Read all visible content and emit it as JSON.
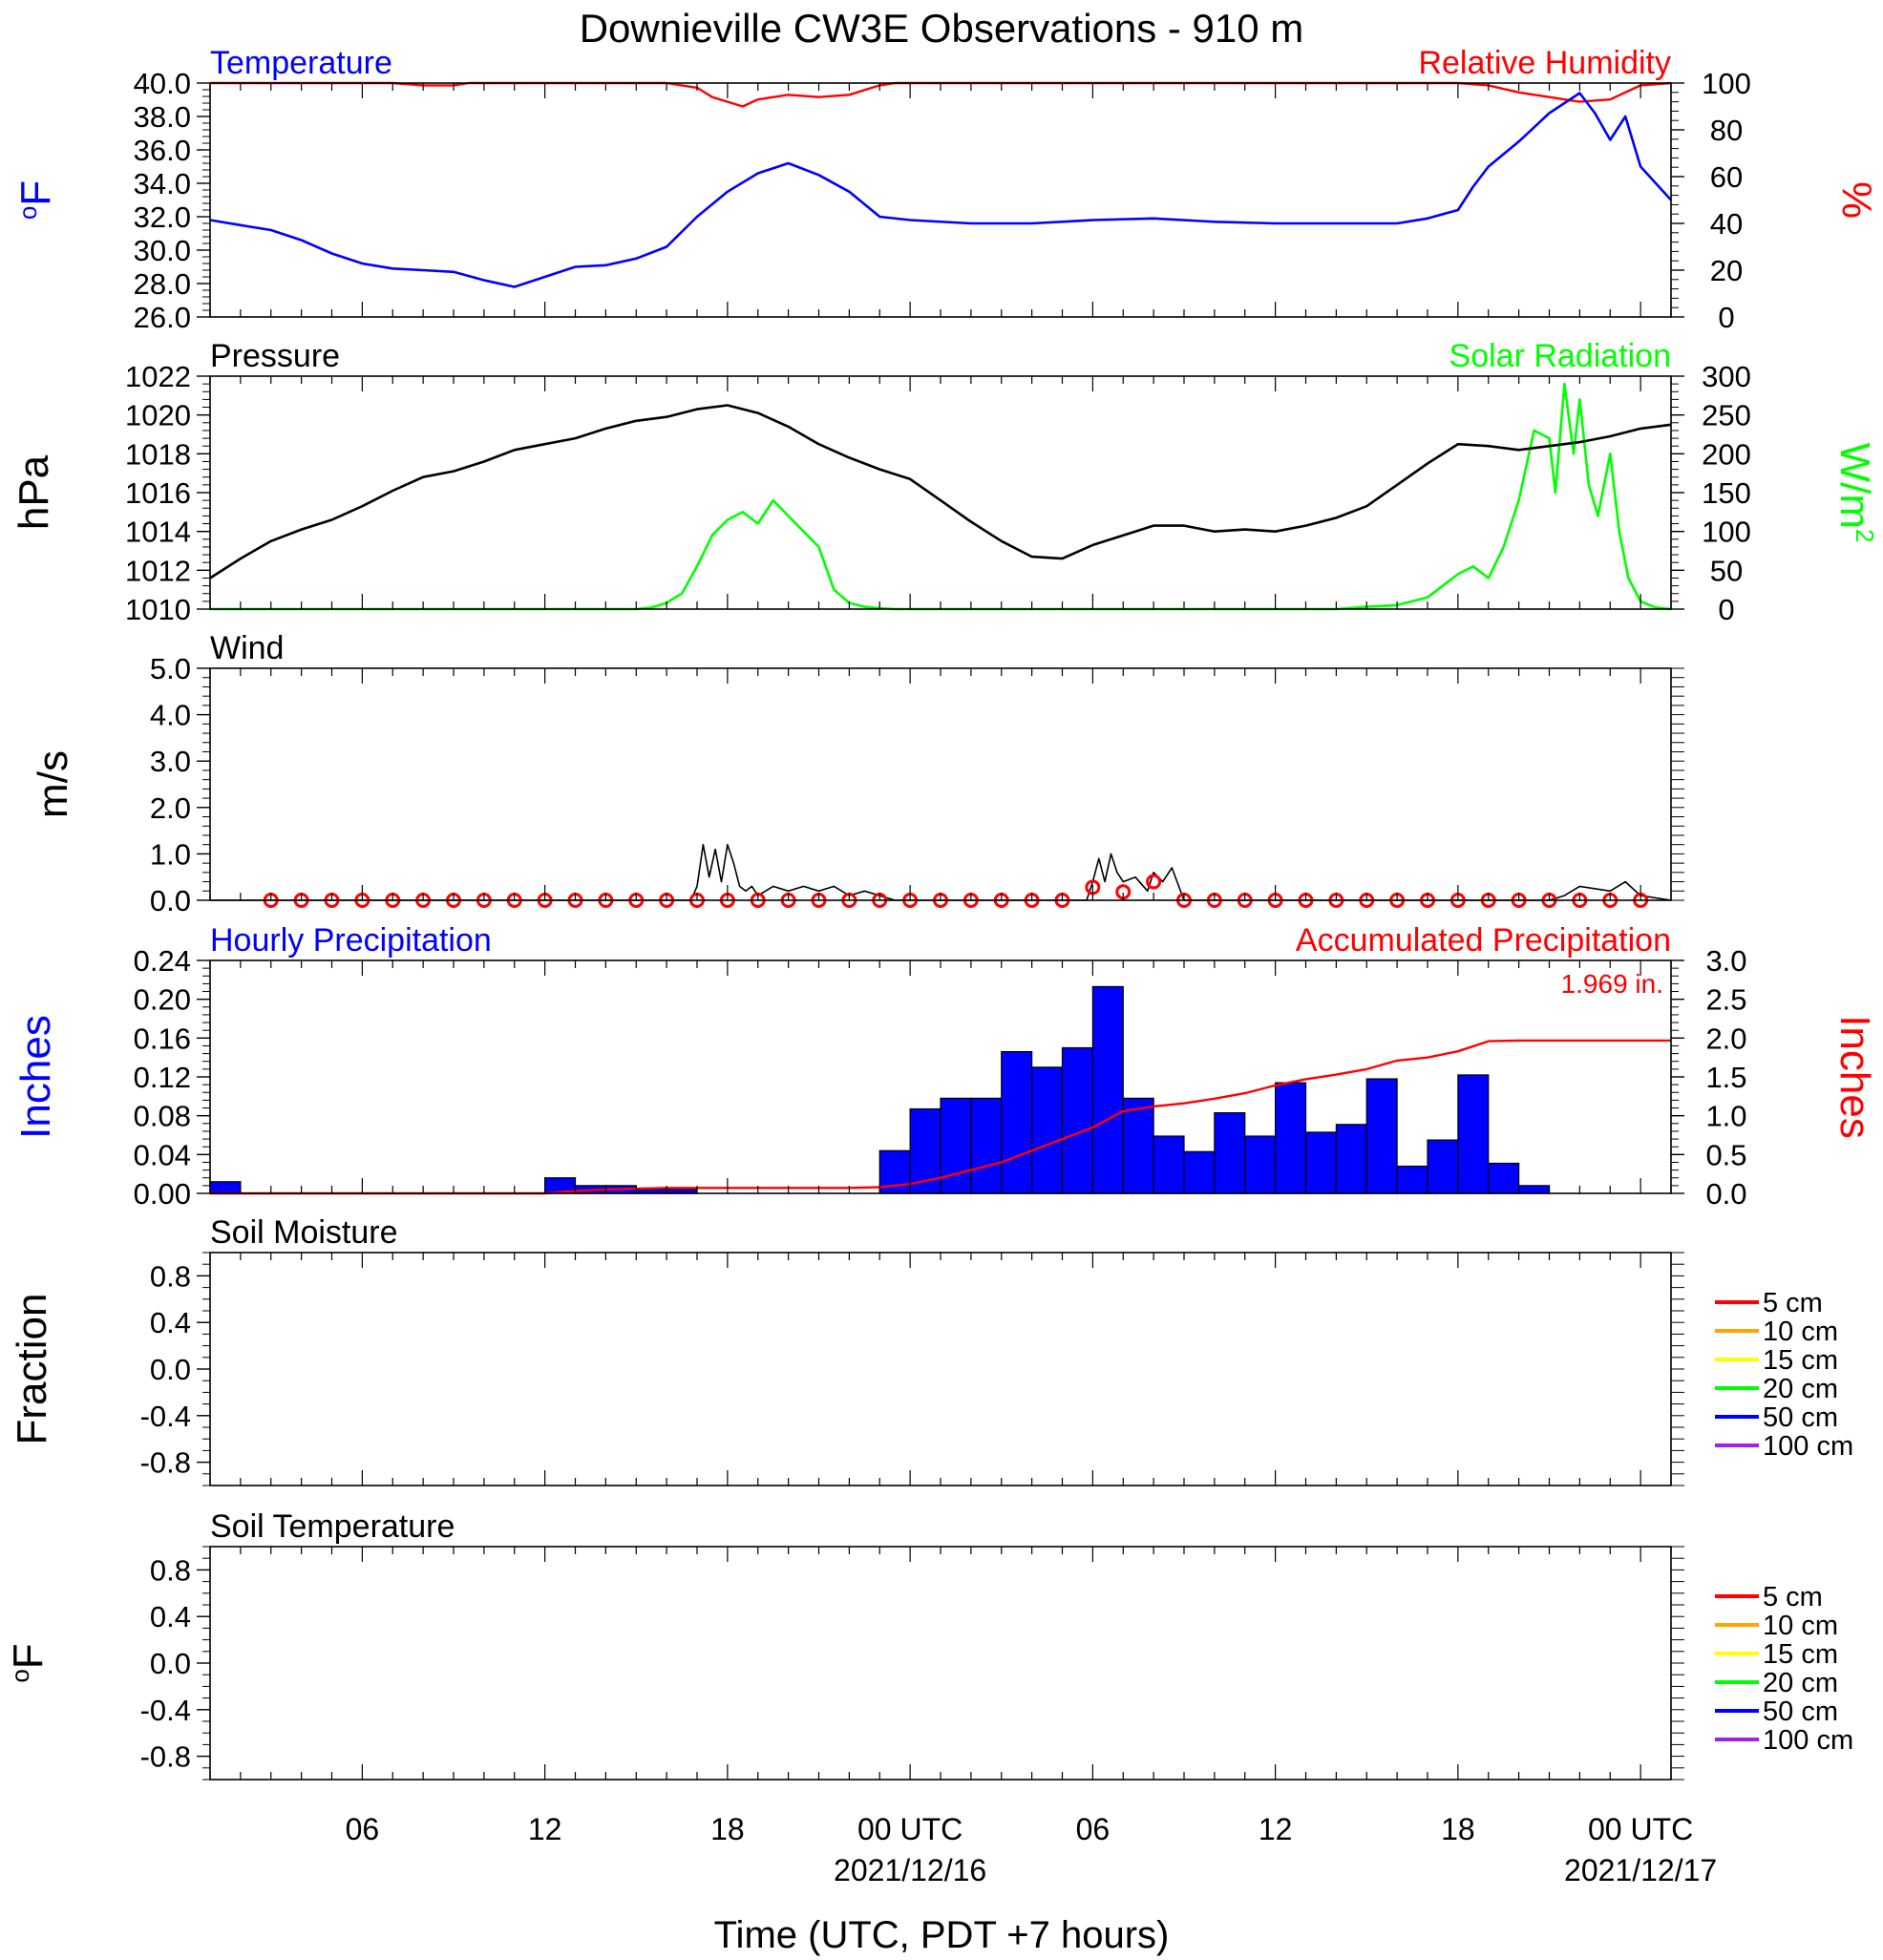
{
  "title": "Downieville CW3E Observations - 910 m",
  "xaxis": {
    "label": "Time (UTC, PDT +7 hours)",
    "ticks": [
      {
        "hour": 6,
        "label": "06"
      },
      {
        "hour": 12,
        "label": "12"
      },
      {
        "hour": 18,
        "label": "18"
      },
      {
        "hour": 24,
        "label": "00 UTC",
        "date": "2021/12/16"
      },
      {
        "hour": 30,
        "label": "06"
      },
      {
        "hour": 36,
        "label": "12"
      },
      {
        "hour": 42,
        "label": "18"
      },
      {
        "hour": 48,
        "label": "00 UTC",
        "date": "2021/12/17"
      }
    ],
    "range_hours": [
      1,
      49
    ]
  },
  "colors": {
    "temperature": "#0000ff",
    "humidity": "#ff0000",
    "pressure": "#000000",
    "solar": "#00ff00",
    "wind": "#000000",
    "wind_hourly_marker": "#ff0000",
    "hourly_precip": "#0000ff",
    "accum_precip": "#ff0000",
    "soil_5cm": "#ff0000",
    "soil_10cm": "#ffa500",
    "soil_15cm": "#ffff00",
    "soil_20cm": "#00ff00",
    "soil_50cm": "#0000ff",
    "soil_100cm": "#a020f0"
  },
  "panels": {
    "temp_rh": {
      "left_title": "Temperature",
      "right_title": "Relative Humidity",
      "left_unit": "oF",
      "right_unit": "%",
      "left_ticks": [
        "26.0",
        "28.0",
        "30.0",
        "32.0",
        "34.0",
        "36.0",
        "38.0",
        "40.0"
      ],
      "right_ticks": [
        "0",
        "20",
        "40",
        "60",
        "80",
        "100"
      ]
    },
    "pressure_solar": {
      "left_title": "Pressure",
      "right_title": "Solar Radiation",
      "left_unit": "hPa",
      "right_unit": "W/m2",
      "left_ticks": [
        "1010",
        "1012",
        "1014",
        "1016",
        "1018",
        "1020",
        "1022"
      ],
      "right_ticks": [
        "0",
        "50",
        "100",
        "150",
        "200",
        "250",
        "300"
      ]
    },
    "wind": {
      "left_title": "Wind",
      "left_unit": "m/s",
      "left_ticks": [
        "0.0",
        "1.0",
        "2.0",
        "3.0",
        "4.0",
        "5.0"
      ]
    },
    "precip": {
      "left_title": "Hourly Precipitation",
      "right_title": "Accumulated Precipitation",
      "left_unit": "Inches",
      "right_unit": "Inches",
      "total_label": "1.969 in.",
      "left_ticks": [
        "0.00",
        "0.04",
        "0.08",
        "0.12",
        "0.16",
        "0.20",
        "0.24"
      ],
      "right_ticks": [
        "0.0",
        "0.5",
        "1.0",
        "1.5",
        "2.0",
        "2.5",
        "3.0"
      ]
    },
    "soil_moisture": {
      "left_title": "Soil Moisture",
      "left_unit": "Fraction",
      "left_ticks": [
        "-0.8",
        "-0.4",
        "0.0",
        "0.4",
        "0.8"
      ],
      "legend": [
        "5 cm",
        "10 cm",
        "15 cm",
        "20 cm",
        "50 cm",
        "100 cm"
      ]
    },
    "soil_temperature": {
      "left_title": "Soil Temperature",
      "left_unit": "oF",
      "left_ticks": [
        "-0.8",
        "-0.4",
        "0.0",
        "0.4",
        "0.8"
      ],
      "legend": [
        "5 cm",
        "10 cm",
        "15 cm",
        "20 cm",
        "50 cm",
        "100 cm"
      ]
    }
  },
  "chart_data": [
    {
      "type": "line",
      "title": "Temperature",
      "ylabel": "oF",
      "ylim": [
        26,
        40
      ],
      "x_unit": "hours since 2021-12-15 00 UTC",
      "series": [
        {
          "name": "Temperature",
          "x": [
            1,
            2,
            3,
            4,
            5,
            6,
            7,
            8,
            9,
            10,
            11,
            12,
            13,
            14,
            15,
            16,
            17,
            18,
            19,
            20,
            21,
            22,
            23,
            24,
            26,
            28,
            30,
            32,
            34,
            36,
            38,
            40,
            41,
            42,
            42.5,
            43,
            44,
            45,
            46,
            46.5,
            47,
            47.5,
            48,
            49
          ],
          "y": [
            31.8,
            31.5,
            31.2,
            30.6,
            29.8,
            29.2,
            28.9,
            28.8,
            28.7,
            28.2,
            27.8,
            28.4,
            29.0,
            29.1,
            29.5,
            30.2,
            32.0,
            33.5,
            34.6,
            35.2,
            34.5,
            33.5,
            32.0,
            31.8,
            31.6,
            31.6,
            31.8,
            31.9,
            31.7,
            31.6,
            31.6,
            31.6,
            31.9,
            32.4,
            33.8,
            35.0,
            36.5,
            38.2,
            39.4,
            38.2,
            36.6,
            38.0,
            35.0,
            33.0
          ]
        }
      ]
    },
    {
      "type": "line",
      "title": "Relative Humidity",
      "ylabel": "%",
      "ylim": [
        0,
        100
      ],
      "series": [
        {
          "name": "Relative Humidity",
          "x": [
            1,
            7,
            8,
            9,
            9.5,
            16,
            17,
            17.5,
            18,
            18.5,
            19,
            20,
            21,
            22,
            23,
            23.5,
            42,
            43,
            44,
            45,
            46,
            47,
            48,
            49
          ],
          "y": [
            100,
            100,
            99,
            99,
            100,
            100,
            98,
            94,
            92,
            90,
            93,
            95,
            94,
            95,
            99,
            100,
            100,
            99,
            96,
            94,
            92,
            93,
            99,
            100
          ]
        }
      ]
    },
    {
      "type": "line",
      "title": "Pressure",
      "ylabel": "hPa",
      "ylim": [
        1010,
        1022
      ],
      "series": [
        {
          "name": "Pressure",
          "x": [
            1,
            2,
            3,
            4,
            5,
            6,
            7,
            8,
            9,
            10,
            11,
            12,
            13,
            14,
            15,
            16,
            17,
            18,
            19,
            20,
            21,
            22,
            23,
            24,
            25,
            26,
            27,
            28,
            29,
            30,
            31,
            32,
            33,
            34,
            35,
            36,
            37,
            38,
            39,
            40,
            41,
            42,
            43,
            44,
            45,
            46,
            47,
            48,
            49
          ],
          "y": [
            1011.6,
            1012.6,
            1013.5,
            1014.1,
            1014.6,
            1015.3,
            1016.1,
            1016.8,
            1017.1,
            1017.6,
            1018.2,
            1018.5,
            1018.8,
            1019.3,
            1019.7,
            1019.9,
            1020.3,
            1020.5,
            1020.1,
            1019.4,
            1018.5,
            1017.8,
            1017.2,
            1016.7,
            1015.6,
            1014.5,
            1013.5,
            1012.7,
            1012.6,
            1013.3,
            1013.8,
            1014.3,
            1014.3,
            1014.0,
            1014.1,
            1014.0,
            1014.3,
            1014.7,
            1015.3,
            1016.4,
            1017.5,
            1018.5,
            1018.4,
            1018.2,
            1018.4,
            1018.6,
            1018.9,
            1019.3,
            1019.5
          ]
        }
      ]
    },
    {
      "type": "line",
      "title": "Solar Radiation",
      "ylabel": "W/m2",
      "ylim": [
        0,
        300
      ],
      "series": [
        {
          "name": "Solar Radiation",
          "x": [
            1,
            15,
            15.5,
            16,
            16.5,
            17,
            17.5,
            18,
            18.5,
            19,
            19.5,
            20,
            20.5,
            21,
            21.5,
            22,
            22.5,
            23,
            23.5,
            24,
            38,
            39,
            40,
            41,
            41.5,
            42,
            42.5,
            43,
            43.5,
            44,
            44.5,
            45,
            45.2,
            45.5,
            45.8,
            46,
            46.3,
            46.6,
            47,
            47.3,
            47.6,
            48,
            48.5,
            49
          ],
          "y": [
            0,
            0,
            2,
            8,
            20,
            55,
            95,
            115,
            125,
            110,
            140,
            120,
            100,
            80,
            25,
            8,
            3,
            1,
            0,
            0,
            0,
            3,
            5,
            15,
            30,
            45,
            55,
            40,
            80,
            140,
            230,
            220,
            150,
            290,
            200,
            270,
            160,
            120,
            200,
            100,
            40,
            10,
            2,
            0
          ]
        }
      ]
    },
    {
      "type": "line",
      "title": "Wind",
      "ylabel": "m/s",
      "ylim": [
        0,
        5
      ],
      "series": [
        {
          "name": "Wind",
          "x": [
            1,
            16.8,
            17.0,
            17.2,
            17.4,
            17.6,
            17.8,
            18.0,
            18.2,
            18.4,
            18.6,
            18.8,
            19.0,
            19.5,
            20.0,
            20.5,
            21.0,
            21.5,
            22.0,
            22.5,
            23.0,
            23.5,
            29.8,
            30.0,
            30.2,
            30.4,
            30.6,
            30.8,
            31.0,
            31.4,
            31.8,
            32.0,
            32.3,
            32.6,
            33.0,
            45.0,
            45.5,
            46.0,
            47.0,
            47.5,
            48.0,
            49
          ],
          "y": [
            0,
            0,
            0.3,
            1.2,
            0.5,
            1.1,
            0.4,
            1.2,
            0.8,
            0.3,
            0.2,
            0.3,
            0.1,
            0.3,
            0.2,
            0.3,
            0.2,
            0.3,
            0.1,
            0.2,
            0.1,
            0,
            0,
            0.4,
            0.9,
            0.4,
            1.0,
            0.6,
            0.4,
            0.5,
            0.2,
            0.6,
            0.4,
            0.7,
            0,
            0,
            0.1,
            0.3,
            0.2,
            0.4,
            0.1,
            0
          ]
        },
        {
          "name": "Hourly wind",
          "x": [
            3,
            4,
            5,
            6,
            7,
            8,
            9,
            10,
            11,
            12,
            13,
            14,
            15,
            16,
            17,
            18,
            19,
            20,
            21,
            22,
            23,
            24,
            25,
            26,
            27,
            28,
            29,
            30,
            31,
            32,
            33,
            34,
            35,
            36,
            37,
            38,
            39,
            40,
            41,
            42,
            43,
            44,
            45,
            46,
            47,
            48
          ],
          "y": [
            0,
            0,
            0,
            0,
            0,
            0,
            0,
            0,
            0,
            0,
            0,
            0,
            0,
            0,
            0,
            0,
            0,
            0,
            0,
            0,
            0,
            0,
            0,
            0,
            0,
            0,
            0,
            0.28,
            0.18,
            0.4,
            0,
            0,
            0,
            0,
            0,
            0,
            0,
            0,
            0,
            0,
            0,
            0,
            0,
            0,
            0,
            0
          ]
        }
      ]
    },
    {
      "type": "bar",
      "title": "Hourly Precipitation",
      "ylabel": "Inches",
      "ylim": [
        0,
        0.24
      ],
      "series": [
        {
          "name": "Hourly Precipitation",
          "x": [
            1,
            12,
            13,
            14,
            15,
            16,
            17,
            18,
            19,
            20,
            21,
            22,
            23,
            24,
            25,
            26,
            27,
            28,
            29,
            30,
            31,
            32,
            33,
            34,
            35,
            36,
            37,
            38,
            39,
            40,
            41,
            42,
            43,
            44
          ],
          "y": [
            0.012,
            0.016,
            0.008,
            0.008,
            0.004,
            0.004,
            0,
            0,
            0,
            0,
            0,
            0,
            0.044,
            0.087,
            0.098,
            0.098,
            0.146,
            0.13,
            0.15,
            0.213,
            0.098,
            0.059,
            0.043,
            0.083,
            0.059,
            0.114,
            0.063,
            0.071,
            0.118,
            0.028,
            0.055,
            0.122,
            0.031,
            0.008
          ]
        }
      ]
    },
    {
      "type": "line",
      "title": "Accumulated Precipitation",
      "ylabel": "Inches",
      "ylim": [
        0,
        3
      ],
      "series": [
        {
          "name": "Accumulated Precipitation",
          "x": [
            1,
            12,
            13,
            14,
            15,
            16,
            17,
            18,
            19,
            20,
            21,
            22,
            23,
            24,
            25,
            26,
            27,
            28,
            29,
            30,
            31,
            32,
            33,
            34,
            35,
            36,
            37,
            38,
            39,
            40,
            41,
            42,
            43,
            44,
            49
          ],
          "y": [
            0.0,
            0.0,
            0.03,
            0.05,
            0.06,
            0.07,
            0.07,
            0.07,
            0.07,
            0.07,
            0.07,
            0.07,
            0.08,
            0.12,
            0.2,
            0.3,
            0.4,
            0.55,
            0.7,
            0.85,
            1.06,
            1.12,
            1.16,
            1.22,
            1.29,
            1.39,
            1.47,
            1.53,
            1.6,
            1.71,
            1.75,
            1.83,
            1.96,
            1.969,
            1.969
          ]
        }
      ]
    },
    {
      "type": "line",
      "title": "Soil Moisture",
      "ylabel": "Fraction",
      "ylim": [
        -1,
        1
      ],
      "series": []
    },
    {
      "type": "line",
      "title": "Soil Temperature",
      "ylabel": "oF",
      "ylim": [
        -1,
        1
      ],
      "series": []
    }
  ]
}
